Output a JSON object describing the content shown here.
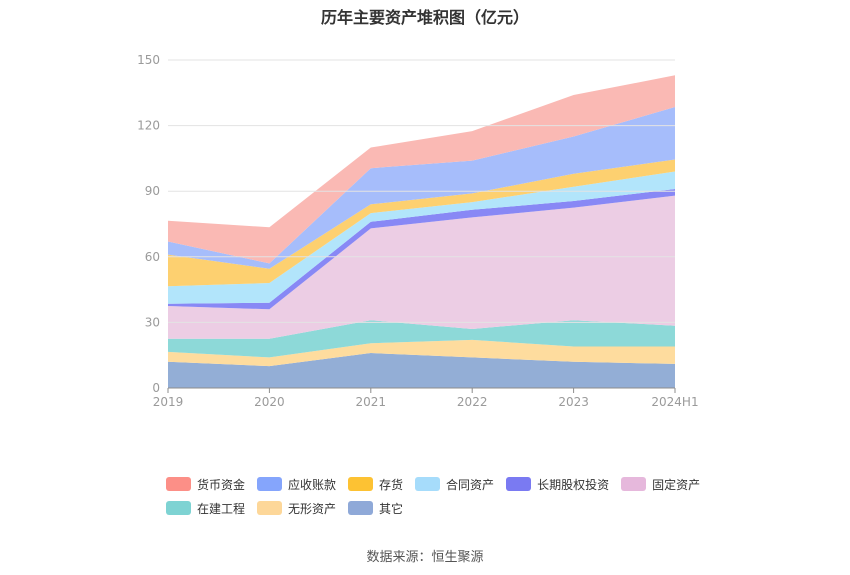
{
  "chart_data": {
    "type": "area",
    "stacked": true,
    "title": "历年主要资产堆积图（亿元）",
    "x": [
      "2019",
      "2020",
      "2021",
      "2022",
      "2023",
      "2024H1"
    ],
    "ylim": [
      0,
      150
    ],
    "yticks": [
      0,
      30,
      60,
      90,
      120,
      150
    ],
    "grid": true,
    "legend_position": "bottom",
    "series": [
      {
        "name": "其它",
        "color": "#93aed6",
        "values": [
          12,
          10,
          16,
          14,
          12,
          11
        ]
      },
      {
        "name": "无形资产",
        "color": "#fedc9e",
        "values": [
          4.5,
          4,
          4.5,
          8,
          7,
          8
        ]
      },
      {
        "name": "在建工程",
        "color": "#8dd9d8",
        "values": [
          6,
          8.5,
          10.5,
          5,
          12,
          9.5
        ]
      },
      {
        "name": "固定资产",
        "color": "#eccde4",
        "values": [
          15,
          13.5,
          42,
          51,
          51.5,
          59.5
        ]
      },
      {
        "name": "长期股权投资",
        "color": "#8888f5",
        "values": [
          1,
          3,
          3,
          3.5,
          3,
          3
        ]
      },
      {
        "name": "合同资产",
        "color": "#b2e5fb",
        "values": [
          8,
          9,
          4,
          3.5,
          6.5,
          8
        ]
      },
      {
        "name": "存货",
        "color": "#fdd070",
        "values": [
          14.5,
          6.5,
          4,
          4,
          6,
          5.5
        ]
      },
      {
        "name": "应收账款",
        "color": "#a6bdfb",
        "values": [
          6,
          2.5,
          16.5,
          15,
          17,
          24
        ]
      },
      {
        "name": "货币资金",
        "color": "#fab9b4",
        "values": [
          9.5,
          16.5,
          9.5,
          13.5,
          19,
          14.5
        ]
      }
    ]
  },
  "legend": [
    [
      {
        "name": "货币资金",
        "color": "#fc8f87"
      },
      {
        "name": "应收账款",
        "color": "#85a5fc"
      },
      {
        "name": "存货",
        "color": "#fdc233"
      },
      {
        "name": "合同资产",
        "color": "#a6dcfb"
      },
      {
        "name": "长期股权投资",
        "color": "#7a7af2"
      },
      {
        "name": "固定资产",
        "color": "#e6b8dc"
      }
    ],
    [
      {
        "name": "在建工程",
        "color": "#7ed3d3"
      },
      {
        "name": "无形资产",
        "color": "#fdd799"
      },
      {
        "name": "其它",
        "color": "#8fa9d8"
      }
    ]
  ],
  "source": "数据来源：恒生聚源"
}
